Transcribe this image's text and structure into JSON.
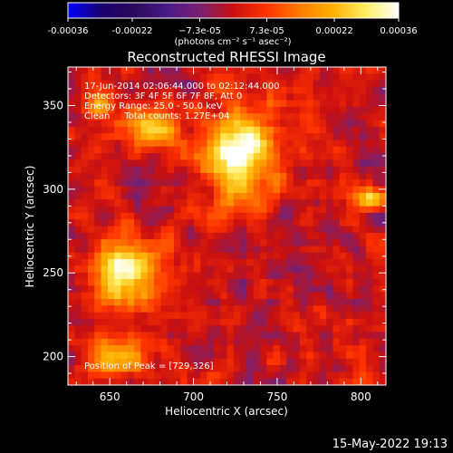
{
  "chart_data": {
    "type": "heatmap",
    "title": "Reconstructed RHESSI Image",
    "xlabel": "Heliocentric X (arcsec)",
    "ylabel": "Heliocentric Y (arcsec)",
    "xlim": [
      625,
      815
    ],
    "ylim": [
      183,
      373
    ],
    "x_ticks": [
      650,
      700,
      750,
      800
    ],
    "x_tick_labels": [
      "650",
      "700",
      "750",
      "800"
    ],
    "y_ticks": [
      200,
      250,
      300,
      350
    ],
    "y_tick_labels": [
      "200",
      "250",
      "300",
      "350"
    ],
    "colorbar": {
      "min": -0.00036,
      "max": 0.00036,
      "ticks": [
        -0.00036,
        -0.00022,
        -7.3e-05,
        7.3e-05,
        0.00022,
        0.00036
      ],
      "tick_labels": [
        "-0.00036",
        "-0.00022",
        "−7.3e-05",
        "7.3e-05",
        "0.00022",
        "0.00036"
      ],
      "units": "(photons cm⁻² s⁻¹ asec⁻²)",
      "colormap": [
        "#0000ff",
        "#1a0070",
        "#2a0a5a",
        "#4a1a88",
        "#7a2070",
        "#c81010",
        "#ff3300",
        "#ff7a00",
        "#ffb000",
        "#ffee60",
        "#ffffff"
      ]
    },
    "sources": [
      {
        "x": 728,
        "y": 322,
        "sx": 15,
        "sy": 20,
        "amp": 0.00036
      },
      {
        "x": 660,
        "y": 250,
        "sx": 14,
        "sy": 14,
        "amp": 0.00031
      },
      {
        "x": 675,
        "y": 336,
        "sx": 11,
        "sy": 7,
        "amp": 0.0003
      },
      {
        "x": 655,
        "y": 200,
        "sx": 12,
        "sy": 9,
        "amp": 0.00024
      },
      {
        "x": 805,
        "y": 294,
        "sx": 7,
        "sy": 5,
        "amp": 0.00028
      },
      {
        "x": 645,
        "y": 350,
        "sx": 6,
        "sy": 6,
        "amp": 0.00018
      }
    ],
    "annotations": [
      "17-Jun-2014 02:06:44.000 to 02:12:44.000",
      "Detectors: 3F 4F 5F 6F 7F 8F, Att 0",
      "Energy Range: 25.0 - 50.0 keV",
      "Clean     Total counts: 1.27E+04"
    ],
    "peak_label": "Position of Peak = [729,326]",
    "peak": [
      729,
      326
    ]
  },
  "footer": {
    "timestamp": "15-May-2022 19:13"
  }
}
